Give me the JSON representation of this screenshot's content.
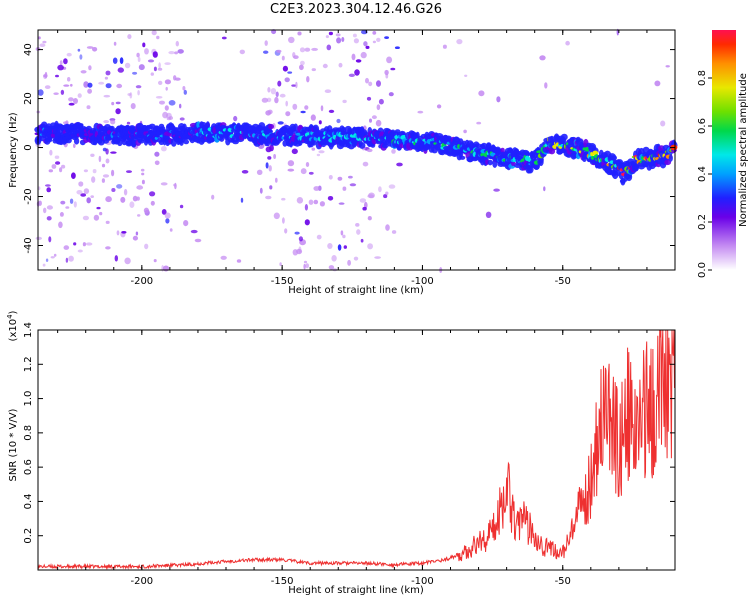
{
  "title": "C2E3.2023.304.12.46.G26",
  "chart_data": [
    {
      "type": "heatmap",
      "xlabel": "Height of straight line (km)",
      "ylabel": "Frequency (Hz)",
      "xlim": [
        -237,
        -10
      ],
      "ylim": [
        -50,
        48
      ],
      "xticks": [
        -200,
        -150,
        -100,
        -50
      ],
      "yticks": [
        -40,
        -20,
        0,
        20,
        40
      ],
      "colorbar": {
        "label": "Normalized spectral amplitude",
        "range": [
          0.0,
          1.0
        ],
        "ticks": [
          0.0,
          0.2,
          0.4,
          0.6,
          0.8
        ],
        "colormap": [
          "#ffffff",
          "#c58cf2",
          "#6a00e8",
          "#2020ff",
          "#00a0ff",
          "#00e8e8",
          "#00d84a",
          "#6ee000",
          "#e8e800",
          "#ff9000",
          "#ff2a00",
          "#ff1050"
        ]
      },
      "ridge": {
        "x": [
          -237,
          -200,
          -175,
          -150,
          -125,
          -105,
          -95,
          -85,
          -75,
          -65,
          -60,
          -55,
          -45,
          -35,
          -28,
          -24,
          -18,
          -12,
          -10
        ],
        "freq": [
          6,
          5,
          6,
          5,
          4,
          3,
          2,
          -1,
          -3,
          -5,
          -6,
          2,
          0,
          -5,
          -11,
          -5,
          -4,
          -3,
          0
        ]
      }
    },
    {
      "type": "line",
      "xlabel": "Height of straight line (km)",
      "ylabel": "SNR (10 * V/V)",
      "y_multiplier": "(x10^4)",
      "xlim": [
        -237,
        -10
      ],
      "ylim": [
        0,
        1.4
      ],
      "xticks": [
        -200,
        -150,
        -100,
        -50
      ],
      "yticks": [
        0.2,
        0.4,
        0.6,
        0.8,
        1.0,
        1.2,
        1.4
      ],
      "series": [
        {
          "color": "#ee3030",
          "x": [
            -237,
            -200,
            -185,
            -170,
            -160,
            -150,
            -140,
            -120,
            -110,
            -100,
            -92,
            -85,
            -80,
            -75,
            -72,
            -70,
            -67,
            -64,
            -60,
            -57,
            -54,
            -50,
            -47,
            -44,
            -41,
            -38,
            -36,
            -33,
            -30,
            -27,
            -24,
            -22,
            -20,
            -18,
            -16,
            -14,
            -12,
            -10
          ],
          "y": [
            0.02,
            0.02,
            0.03,
            0.05,
            0.06,
            0.06,
            0.04,
            0.04,
            0.03,
            0.04,
            0.06,
            0.1,
            0.16,
            0.22,
            0.38,
            0.52,
            0.3,
            0.28,
            0.22,
            0.14,
            0.12,
            0.1,
            0.2,
            0.34,
            0.45,
            0.75,
            0.95,
            0.85,
            0.72,
            0.9,
            0.78,
            0.85,
            1.0,
            0.88,
            1.1,
            1.38,
            1.05,
            1.1
          ]
        }
      ]
    }
  ]
}
